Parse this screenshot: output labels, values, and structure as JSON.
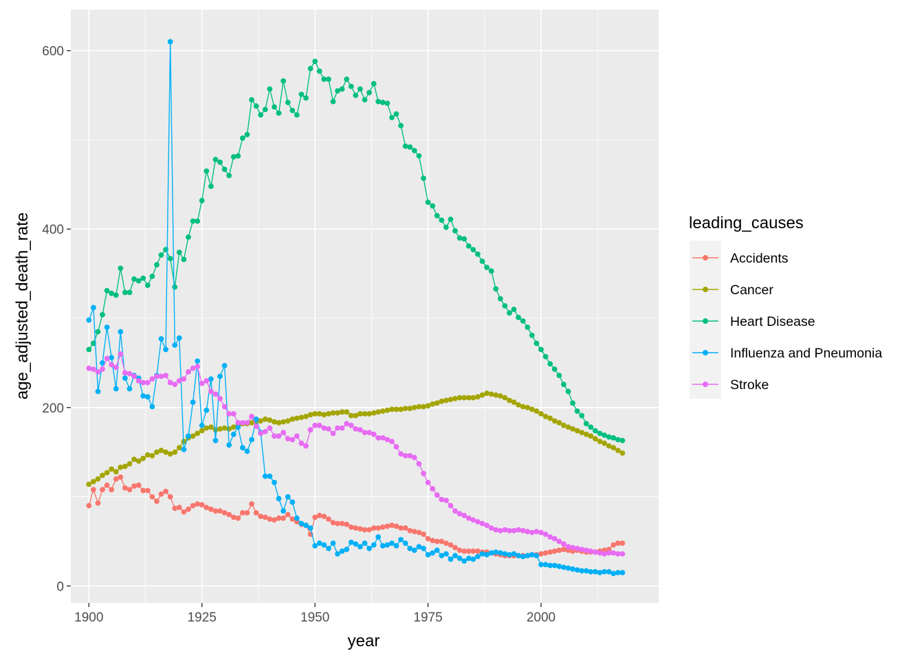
{
  "chart_data": {
    "type": "line",
    "xlabel": "year",
    "ylabel": "age_adjusted_death_rate",
    "xlim": [
      1896,
      2026
    ],
    "ylim": [
      -19,
      646
    ],
    "x_ticks": [
      1900,
      1925,
      1950,
      1975,
      2000
    ],
    "x_tick_labels": [
      "1900",
      "1925",
      "1950",
      "1975",
      "2000"
    ],
    "y_ticks": [
      0,
      200,
      400,
      600
    ],
    "y_tick_labels": [
      "0",
      "200",
      "400",
      "600"
    ],
    "legend": {
      "title": "leading_causes",
      "position": "right"
    },
    "x_start": 1900,
    "x_end": 2018,
    "series": [
      {
        "name": "Accidents",
        "color": "#F8766D",
        "values": [
          90,
          108,
          93,
          108,
          113,
          108,
          120,
          122,
          110,
          108,
          112,
          113,
          107,
          107,
          100,
          95,
          103,
          106,
          100,
          87,
          88,
          83,
          86,
          90,
          92,
          91,
          88,
          86,
          84,
          84,
          82,
          80,
          77,
          76,
          82,
          82,
          92,
          82,
          78,
          77,
          75,
          74,
          76,
          76,
          80,
          75,
          72,
          69,
          68,
          58,
          77,
          79,
          78,
          75,
          71,
          70,
          70,
          69,
          66,
          65,
          64,
          63,
          63,
          65,
          65,
          66,
          67,
          68,
          67,
          65,
          65,
          62,
          61,
          60,
          58,
          53,
          51,
          50,
          50,
          48,
          46,
          43,
          40,
          39,
          39,
          39,
          39,
          38,
          38,
          37,
          36,
          35,
          34,
          34,
          34,
          34,
          34,
          34,
          35,
          35,
          36,
          37,
          38,
          39,
          40,
          41,
          40,
          39,
          40,
          39,
          38,
          38,
          38,
          39,
          40,
          41,
          46,
          48,
          48
        ]
      },
      {
        "name": "Cancer",
        "color": "#A3A500",
        "values": [
          114,
          117,
          120,
          124,
          127,
          131,
          128,
          133,
          134,
          137,
          142,
          140,
          143,
          147,
          146,
          150,
          152,
          150,
          148,
          150,
          155,
          162,
          166,
          168,
          171,
          174,
          177,
          178,
          175,
          176,
          177,
          176,
          178,
          180,
          182,
          182,
          183,
          184,
          185,
          187,
          186,
          184,
          183,
          184,
          185,
          187,
          188,
          189,
          190,
          192,
          193,
          193,
          192,
          193,
          194,
          194,
          195,
          195,
          191,
          191,
          193,
          193,
          193,
          194,
          195,
          196,
          197,
          198,
          198,
          198,
          199,
          199,
          200,
          201,
          201,
          202,
          204,
          205,
          207,
          208,
          209,
          210,
          211,
          211,
          211,
          211,
          212,
          214,
          216,
          215,
          214,
          213,
          211,
          208,
          206,
          203,
          201,
          200,
          198,
          196,
          193,
          190,
          188,
          185,
          183,
          180,
          178,
          176,
          174,
          172,
          170,
          168,
          165,
          162,
          160,
          157,
          155,
          152,
          149
        ]
      },
      {
        "name": "Heart Disease",
        "color": "#00BF7D",
        "values": [
          265,
          272,
          285,
          304,
          331,
          328,
          326,
          356,
          329,
          329,
          344,
          342,
          345,
          337,
          347,
          360,
          371,
          377,
          367,
          335,
          374,
          366,
          391,
          409,
          409,
          432,
          465,
          448,
          478,
          475,
          467,
          460,
          481,
          482,
          502,
          506,
          545,
          538,
          528,
          534,
          557,
          537,
          530,
          566,
          542,
          533,
          528,
          551,
          547,
          580,
          588,
          577,
          568,
          568,
          543,
          555,
          557,
          568,
          560,
          550,
          557,
          545,
          553,
          563,
          543,
          542,
          541,
          525,
          529,
          516,
          493,
          492,
          488,
          482,
          457,
          430,
          426,
          415,
          410,
          402,
          411,
          398,
          390,
          389,
          381,
          377,
          372,
          364,
          357,
          353,
          333,
          322,
          314,
          306,
          310,
          301,
          297,
          290,
          281,
          272,
          265,
          257,
          249,
          243,
          236,
          226,
          218,
          205,
          196,
          191,
          182,
          178,
          174,
          171,
          169,
          167,
          166,
          164,
          163
        ]
      },
      {
        "name": "Influenza and Pneumonia",
        "color": "#00B0F6",
        "values": [
          298,
          312,
          218,
          250,
          290,
          256,
          221,
          285,
          233,
          221,
          236,
          233,
          213,
          212,
          201,
          236,
          277,
          265,
          610,
          270,
          278,
          153,
          168,
          206,
          252,
          180,
          197,
          232,
          163,
          235,
          247,
          158,
          170,
          178,
          155,
          151,
          164,
          187,
          172,
          123,
          123,
          116,
          98,
          84,
          100,
          94,
          76,
          70,
          68,
          65,
          45,
          48,
          46,
          42,
          48,
          36,
          39,
          41,
          49,
          47,
          44,
          48,
          42,
          46,
          55,
          45,
          46,
          48,
          45,
          52,
          48,
          42,
          40,
          44,
          42,
          35,
          37,
          40,
          34,
          36,
          30,
          34,
          31,
          28,
          31,
          30,
          33,
          36,
          35,
          37,
          38,
          37,
          36,
          35,
          36,
          34,
          33,
          34,
          35,
          34,
          24,
          24,
          23,
          23,
          22,
          21,
          20,
          19,
          18,
          17,
          17,
          16,
          16,
          15,
          16,
          16,
          14,
          15,
          15
        ]
      },
      {
        "name": "Stroke",
        "color": "#E76BF3",
        "values": [
          244,
          243,
          240,
          243,
          255,
          248,
          245,
          260,
          239,
          238,
          235,
          230,
          228,
          228,
          232,
          235,
          235,
          236,
          228,
          226,
          230,
          232,
          240,
          244,
          246,
          227,
          230,
          218,
          215,
          210,
          201,
          193,
          193,
          183,
          183,
          183,
          190,
          179,
          171,
          173,
          177,
          168,
          168,
          172,
          165,
          164,
          168,
          160,
          157,
          175,
          180,
          180,
          177,
          176,
          171,
          177,
          177,
          182,
          180,
          176,
          175,
          172,
          172,
          170,
          166,
          166,
          164,
          162,
          156,
          148,
          146,
          146,
          144,
          137,
          126,
          116,
          109,
          102,
          97,
          96,
          90,
          84,
          81,
          79,
          76,
          74,
          72,
          70,
          68,
          65,
          63,
          62,
          63,
          62,
          62,
          63,
          62,
          61,
          60,
          61,
          60,
          58,
          55,
          53,
          50,
          47,
          44,
          43,
          42,
          41,
          40,
          39,
          38,
          37,
          36,
          37,
          37,
          36,
          36
        ]
      }
    ]
  }
}
